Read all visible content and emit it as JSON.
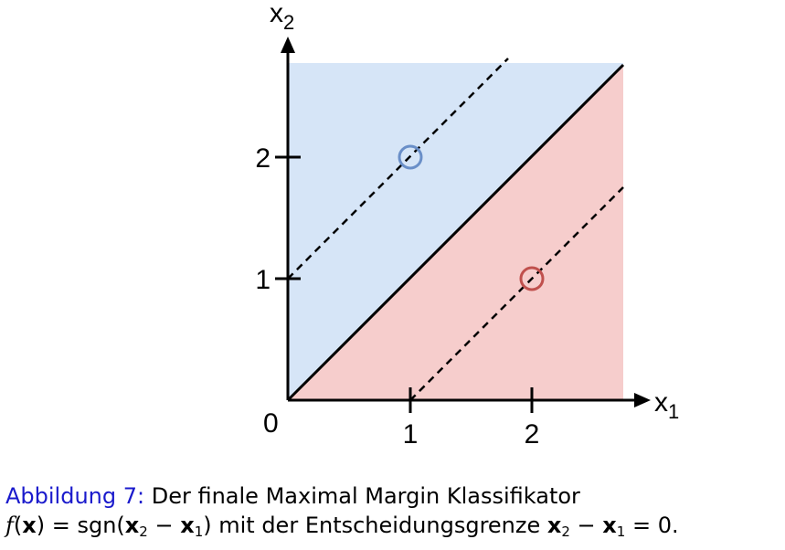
{
  "figure": {
    "axes": {
      "x_label": "x",
      "x_label_sub": "1",
      "y_label": "x",
      "y_label_sub": "2",
      "origin_label": "0",
      "x_ticks": [
        "1",
        "2"
      ],
      "y_ticks": [
        "1",
        "2"
      ]
    },
    "regions": {
      "upper_color": "#d6e5f7",
      "lower_color": "#f6cdcc"
    },
    "lines": {
      "decision_boundary": {
        "equation": "x2 = x1",
        "style": "solid",
        "color": "#000000"
      },
      "margin_upper": {
        "equation": "x2 = x1 + 1",
        "style": "dashed",
        "color": "#000000"
      },
      "margin_lower": {
        "equation": "x2 = x1 - 1",
        "style": "dashed",
        "color": "#000000"
      }
    },
    "points": [
      {
        "x1": 1,
        "x2": 2,
        "class": "positive",
        "color": "#6a8fc8"
      },
      {
        "x1": 2,
        "x2": 1,
        "class": "negative",
        "color": "#c0504d"
      }
    ]
  },
  "caption": {
    "label": "Abbildung 7:",
    "line1_text": " Der finale Maximal Margin Klassifikator",
    "line2": {
      "f": "f",
      "open": "(",
      "x": "x",
      "close_eq": ") = sgn(",
      "x2": "x",
      "x2_sub": "2",
      "minus": " − ",
      "x1": "x",
      "x1_sub": "1",
      "close": ")",
      "middle": " mit der Entscheidungsgrenze ",
      "bx2": "x",
      "bx2_sub": "2",
      "bminus": " − ",
      "bx1": "x",
      "bx1_sub": "1",
      "end": " = 0."
    }
  }
}
